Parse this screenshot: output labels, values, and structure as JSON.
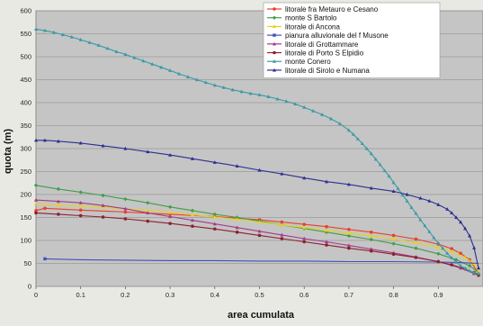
{
  "chart_data": {
    "type": "line",
    "xlabel": "area cumulata",
    "ylabel": "quota (m)",
    "xlim": [
      0,
      1
    ],
    "ylim": [
      0,
      600
    ],
    "x_ticks": [
      0,
      0.1,
      0.2,
      0.3,
      0.4,
      0.5,
      0.6,
      0.7,
      0.8,
      0.9
    ],
    "x_tick_labels": [
      "0",
      "0.1",
      "0.2",
      "0.3",
      "0.4",
      "0.5",
      "0.6",
      "0.7",
      "0.8",
      "0.9"
    ],
    "y_ticks": [
      0,
      50,
      100,
      150,
      200,
      250,
      300,
      350,
      400,
      450,
      500,
      550,
      600
    ],
    "grid": true,
    "legend_position": "top-right",
    "series": [
      {
        "name": "litorale fra Metauro e Cesano",
        "color": "#e8402a",
        "marker": "circle",
        "x": [
          0,
          0.02,
          0.1,
          0.2,
          0.3,
          0.4,
          0.5,
          0.55,
          0.6,
          0.65,
          0.7,
          0.75,
          0.8,
          0.85,
          0.9,
          0.93,
          0.95,
          0.97,
          0.99
        ],
        "y": [
          165,
          170,
          166,
          162,
          157,
          152,
          145,
          140,
          135,
          130,
          124,
          118,
          111,
          103,
          92,
          82,
          72,
          58,
          28
        ]
      },
      {
        "name": "monte S Bartolo",
        "color": "#3e9e4a",
        "marker": "diamond",
        "x": [
          0,
          0.05,
          0.1,
          0.15,
          0.2,
          0.25,
          0.3,
          0.35,
          0.4,
          0.45,
          0.5,
          0.55,
          0.6,
          0.65,
          0.7,
          0.75,
          0.8,
          0.85,
          0.9,
          0.94,
          0.97,
          0.99
        ],
        "y": [
          220,
          212,
          205,
          198,
          190,
          182,
          173,
          165,
          157,
          150,
          142,
          134,
          126,
          118,
          110,
          102,
          93,
          83,
          71,
          58,
          45,
          30
        ]
      },
      {
        "name": "litorale di Ancona",
        "color": "#e6d21e",
        "marker": "triangle",
        "x": [
          0,
          0.05,
          0.1,
          0.15,
          0.2,
          0.25,
          0.3,
          0.35,
          0.4,
          0.45,
          0.5,
          0.55,
          0.6,
          0.65,
          0.7,
          0.75,
          0.8,
          0.85,
          0.9,
          0.93,
          0.96,
          0.98,
          0.99
        ],
        "y": [
          180,
          177,
          175,
          172,
          169,
          165,
          161,
          156,
          151,
          146,
          140,
          134,
          128,
          122,
          116,
          110,
          103,
          95,
          85,
          76,
          63,
          50,
          32
        ]
      },
      {
        "name": "pianura alluvionale del f Musone",
        "color": "#4250b8",
        "marker": "square",
        "x": [
          0.02,
          0.1,
          0.2,
          0.3,
          0.4,
          0.5,
          0.6,
          0.7,
          0.8,
          0.9,
          0.95,
          0.99
        ],
        "y": [
          60,
          58,
          57,
          56,
          56,
          55,
          55,
          54,
          54,
          53,
          52,
          50
        ]
      },
      {
        "name": "litorale di Grottammare",
        "color": "#a4398c",
        "marker": "triangle",
        "x": [
          0,
          0.05,
          0.1,
          0.15,
          0.2,
          0.25,
          0.3,
          0.35,
          0.4,
          0.45,
          0.5,
          0.55,
          0.6,
          0.65,
          0.7,
          0.75,
          0.8,
          0.85,
          0.9,
          0.95,
          0.98
        ],
        "y": [
          188,
          185,
          182,
          176,
          169,
          160,
          152,
          144,
          136,
          128,
          120,
          112,
          104,
          97,
          89,
          81,
          73,
          64,
          54,
          40,
          28
        ]
      },
      {
        "name": "litorale di Porto S Elpidio",
        "color": "#8e1f2e",
        "marker": "circle",
        "x": [
          0,
          0.05,
          0.1,
          0.15,
          0.2,
          0.25,
          0.3,
          0.35,
          0.4,
          0.45,
          0.5,
          0.55,
          0.6,
          0.65,
          0.7,
          0.75,
          0.8,
          0.85,
          0.9,
          0.93,
          0.96,
          0.98,
          0.99
        ],
        "y": [
          160,
          157,
          154,
          151,
          147,
          142,
          137,
          131,
          125,
          118,
          111,
          104,
          97,
          90,
          83,
          77,
          70,
          63,
          54,
          47,
          38,
          30,
          24
        ]
      },
      {
        "name": "monte Conero",
        "color": "#3a9aa6",
        "marker": "triangle",
        "x": [
          0,
          0.02,
          0.04,
          0.06,
          0.08,
          0.1,
          0.12,
          0.14,
          0.16,
          0.18,
          0.2,
          0.22,
          0.24,
          0.26,
          0.28,
          0.3,
          0.32,
          0.34,
          0.36,
          0.38,
          0.4,
          0.42,
          0.44,
          0.46,
          0.48,
          0.5,
          0.52,
          0.54,
          0.56,
          0.58,
          0.6,
          0.62,
          0.64,
          0.66,
          0.68,
          0.7,
          0.71,
          0.72,
          0.73,
          0.74,
          0.75,
          0.76,
          0.77,
          0.78,
          0.79,
          0.8,
          0.81,
          0.82,
          0.83,
          0.84,
          0.85,
          0.86,
          0.87,
          0.88,
          0.89,
          0.9,
          0.91,
          0.92,
          0.93,
          0.94,
          0.95,
          0.96,
          0.97,
          0.98,
          0.99
        ],
        "y": [
          560,
          557,
          553,
          548,
          543,
          537,
          531,
          525,
          518,
          511,
          505,
          498,
          491,
          484,
          477,
          470,
          463,
          456,
          450,
          444,
          438,
          433,
          428,
          424,
          420,
          417,
          413,
          408,
          403,
          397,
          390,
          382,
          374,
          365,
          354,
          340,
          331,
          321,
          311,
          300,
          289,
          277,
          265,
          252,
          240,
          226,
          213,
          199,
          186,
          172,
          159,
          145,
          132,
          119,
          106,
          94,
          83,
          72,
          62,
          53,
          45,
          39,
          34,
          30,
          28
        ]
      },
      {
        "name": "litorale di Sirolo e Numana",
        "color": "#2c2f8f",
        "marker": "triangle",
        "x": [
          0,
          0.02,
          0.05,
          0.1,
          0.15,
          0.2,
          0.25,
          0.3,
          0.35,
          0.4,
          0.45,
          0.5,
          0.55,
          0.6,
          0.65,
          0.7,
          0.75,
          0.8,
          0.83,
          0.86,
          0.88,
          0.9,
          0.92,
          0.93,
          0.94,
          0.95,
          0.96,
          0.97,
          0.98,
          0.99
        ],
        "y": [
          318,
          318,
          316,
          312,
          306,
          300,
          293,
          286,
          278,
          270,
          262,
          253,
          245,
          236,
          228,
          222,
          214,
          207,
          200,
          192,
          186,
          178,
          168,
          160,
          150,
          140,
          126,
          110,
          84,
          40
        ]
      }
    ]
  }
}
